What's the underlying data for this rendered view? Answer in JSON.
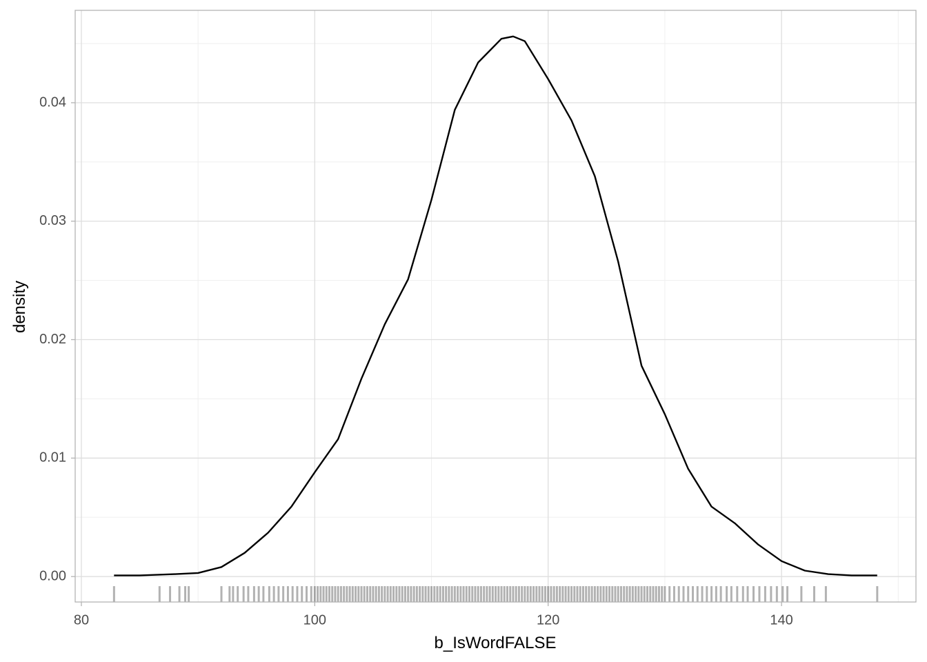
{
  "chart_data": {
    "type": "density",
    "xlabel": "b_IsWordFALSE",
    "ylabel": "density",
    "x": [
      82.8,
      85,
      88,
      90,
      92,
      94,
      96,
      98,
      100,
      102,
      104,
      106,
      108,
      110,
      112,
      114,
      116,
      117,
      118,
      120,
      122,
      124,
      126,
      128,
      130,
      132,
      134,
      136,
      138,
      140,
      142,
      144,
      146,
      148.2
    ],
    "series": [
      {
        "color": "#000000",
        "values": [
          0.0001,
          0.0001,
          0.0002,
          0.0003,
          0.0008,
          0.002,
          0.0037,
          0.0059,
          0.0088,
          0.0116,
          0.0167,
          0.0213,
          0.0251,
          0.0318,
          0.0394,
          0.0434,
          0.0454,
          0.0456,
          0.0452,
          0.042,
          0.0385,
          0.0338,
          0.0266,
          0.0178,
          0.0137,
          0.0091,
          0.0059,
          0.0045,
          0.0027,
          0.0013,
          0.0005,
          0.0002,
          0.0001,
          0.0001
        ]
      }
    ],
    "rug": [
      82.8,
      86.7,
      87.6,
      88.4,
      88.9,
      89.2,
      92.0,
      92.7,
      93.0,
      93.4,
      93.9,
      94.3,
      94.8,
      95.2,
      95.6,
      96.1,
      96.5,
      96.9,
      97.3,
      97.7,
      98.1,
      98.5,
      98.9,
      99.3,
      99.7,
      100,
      100.25,
      100.5,
      100.75,
      101,
      101.25,
      101.5,
      101.75,
      102,
      102.25,
      102.5,
      102.75,
      103,
      103.25,
      103.5,
      103.75,
      104,
      104.25,
      104.5,
      104.75,
      105,
      105.25,
      105.5,
      105.75,
      106,
      106.25,
      106.5,
      106.75,
      107,
      107.25,
      107.5,
      107.75,
      108,
      108.25,
      108.5,
      108.75,
      109,
      109.25,
      109.5,
      109.75,
      110,
      110.25,
      110.5,
      110.75,
      111,
      111.25,
      111.5,
      111.75,
      112,
      112.25,
      112.5,
      112.75,
      113,
      113.25,
      113.5,
      113.75,
      114,
      114.25,
      114.5,
      114.75,
      115,
      115.25,
      115.5,
      115.75,
      116,
      116.25,
      116.5,
      116.75,
      117,
      117.25,
      117.5,
      117.75,
      118,
      118.25,
      118.5,
      118.75,
      119,
      119.25,
      119.5,
      119.75,
      120,
      120.25,
      120.5,
      120.75,
      121,
      121.25,
      121.5,
      121.75,
      122,
      122.25,
      122.5,
      122.75,
      123,
      123.25,
      123.5,
      123.75,
      124,
      124.25,
      124.5,
      124.75,
      125,
      125.25,
      125.5,
      125.75,
      126,
      126.25,
      126.5,
      126.75,
      127,
      127.25,
      127.5,
      127.75,
      128,
      128.25,
      128.5,
      128.75,
      129,
      129.25,
      129.5,
      129.75,
      130,
      130.4,
      130.8,
      131.2,
      131.6,
      132.0,
      132.4,
      132.8,
      133.2,
      133.6,
      134.0,
      134.4,
      134.8,
      135.3,
      135.7,
      136.2,
      136.7,
      137.1,
      137.6,
      138.1,
      138.6,
      139.1,
      139.6,
      140.1,
      140.5,
      141.7,
      142.8,
      143.8,
      148.2
    ],
    "xlim": [
      79.47,
      151.52
    ],
    "ylim": [
      -0.00215,
      0.0478
    ],
    "xticks": [
      80,
      100,
      120,
      140
    ],
    "yticks": [
      {
        "value": 0,
        "label": "0.00"
      },
      {
        "value": 0.01,
        "label": "0.01"
      },
      {
        "value": 0.02,
        "label": "0.02"
      },
      {
        "value": 0.03,
        "label": "0.03"
      },
      {
        "value": 0.04,
        "label": "0.04"
      }
    ],
    "grid": true,
    "minor_grid": true
  }
}
